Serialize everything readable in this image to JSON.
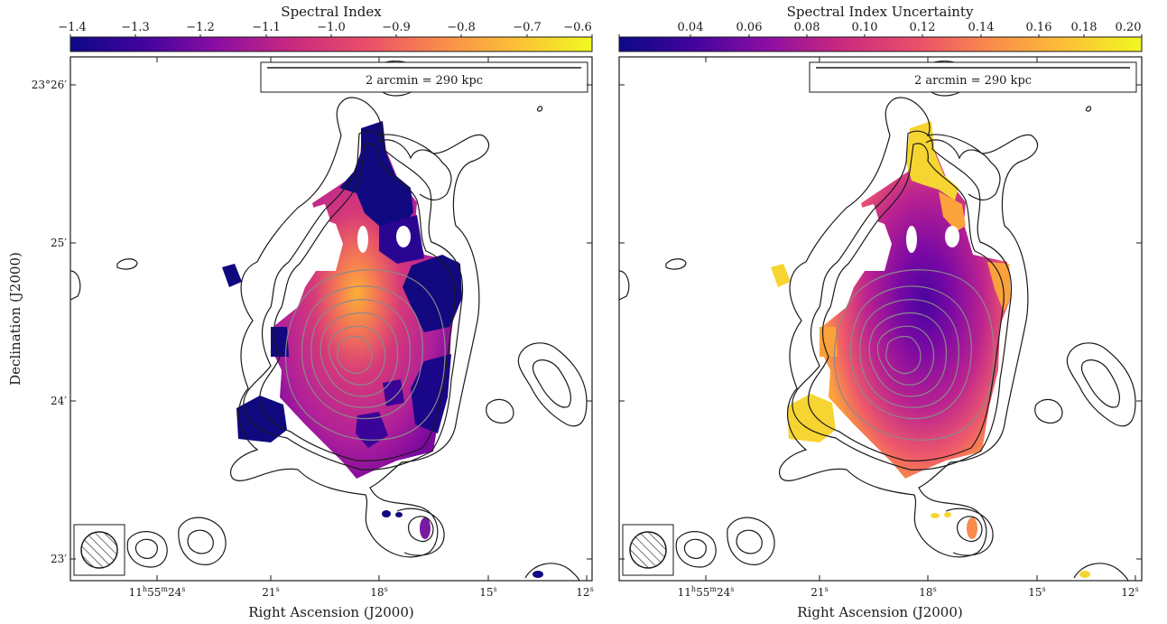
{
  "panels": [
    {
      "id": "left",
      "colorbar": {
        "title": "Spectral Index",
        "tick_labels": [
          "−1.4",
          "−1.3",
          "−1.2",
          "−1.1",
          "−1.0",
          "−0.9",
          "−0.8",
          "−0.7",
          "−0.6"
        ],
        "colormap": [
          "#0d0887",
          "#41049d",
          "#8a0da3",
          "#c72880",
          "#ea4f6a",
          "#f98b4b",
          "#fcc236",
          "#f0f921"
        ]
      },
      "scalebar_label": "2 arcmin = 290 kpc",
      "ylabel": "Declination (J2000)",
      "xlabel": "Right Ascension (J2000)",
      "yticks": [
        "23°26′",
        "25′",
        "24′",
        "23′"
      ],
      "xticks": [
        {
          "h": "11",
          "hs": "h",
          "m": "55",
          "ms": "m",
          "s": "24",
          "ss": "s"
        },
        {
          "s": "21",
          "ss": "s"
        },
        {
          "s": "18",
          "ss": "s"
        },
        {
          "s": "15",
          "ss": "s"
        },
        {
          "s": "12",
          "ss": "s"
        }
      ]
    },
    {
      "id": "right",
      "colorbar": {
        "title": "Spectral Index Uncertainty",
        "tick_labels": [
          "0.04",
          "0.06",
          "0.08",
          "0.10",
          "0.12",
          "0.14",
          "0.16",
          "0.18",
          "0.20"
        ],
        "colormap": [
          "#0d0887",
          "#41049d",
          "#8a0da3",
          "#c72880",
          "#ea4f6a",
          "#f98b4b",
          "#fcc236",
          "#f0f921"
        ]
      },
      "scalebar_label": "2 arcmin = 290 kpc",
      "xlabel": "Right Ascension (J2000)",
      "xticks": [
        {
          "h": "11",
          "hs": "h",
          "m": "55",
          "ms": "m",
          "s": "24",
          "ss": "s"
        },
        {
          "s": "21",
          "ss": "s"
        },
        {
          "s": "18",
          "ss": "s"
        },
        {
          "s": "15",
          "ss": "s"
        },
        {
          "s": "12",
          "ss": "s"
        }
      ]
    }
  ],
  "colors": {
    "contour_outer": "#1a1a1a",
    "contour_inner": "#8a8a8a",
    "axis": "#1a1a1a"
  }
}
